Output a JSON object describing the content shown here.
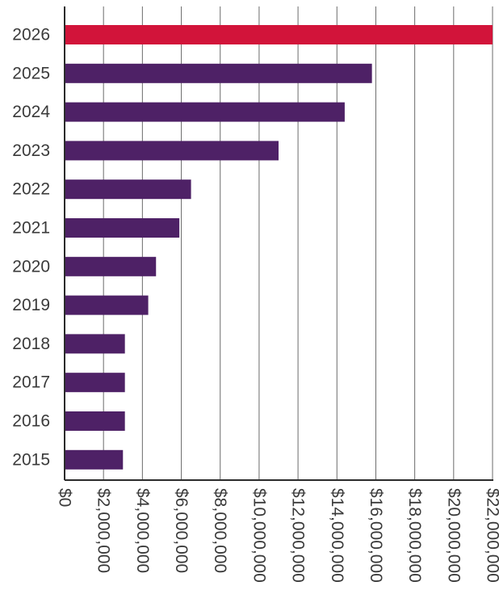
{
  "chart_data": {
    "type": "bar",
    "orientation": "horizontal",
    "title": "",
    "xlabel": "",
    "ylabel": "",
    "categories": [
      "2026",
      "2025",
      "2024",
      "2023",
      "2022",
      "2021",
      "2020",
      "2019",
      "2018",
      "2017",
      "2016",
      "2015"
    ],
    "values": [
      22000000,
      15800000,
      14400000,
      11000000,
      6500000,
      5900000,
      4700000,
      4300000,
      3100000,
      3100000,
      3100000,
      3000000
    ],
    "bar_colors": [
      "#d2143a",
      "#4e2166",
      "#4e2166",
      "#4e2166",
      "#4e2166",
      "#4e2166",
      "#4e2166",
      "#4e2166",
      "#4e2166",
      "#4e2166",
      "#4e2166",
      "#4e2166"
    ],
    "xlim": [
      0,
      22000000
    ],
    "x_ticks": [
      0,
      2000000,
      4000000,
      6000000,
      8000000,
      10000000,
      12000000,
      14000000,
      16000000,
      18000000,
      20000000,
      22000000
    ],
    "x_tick_labels": [
      "$0",
      "$2,000,000",
      "$4,000,000",
      "$6,000,000",
      "$8,000,000",
      "$10,000,000",
      "$12,000,000",
      "$14,000,000",
      "$16,000,000",
      "$18,000,000",
      "$20,000,000",
      "$22,000,000"
    ],
    "grid": "vertical",
    "legend": "none"
  }
}
